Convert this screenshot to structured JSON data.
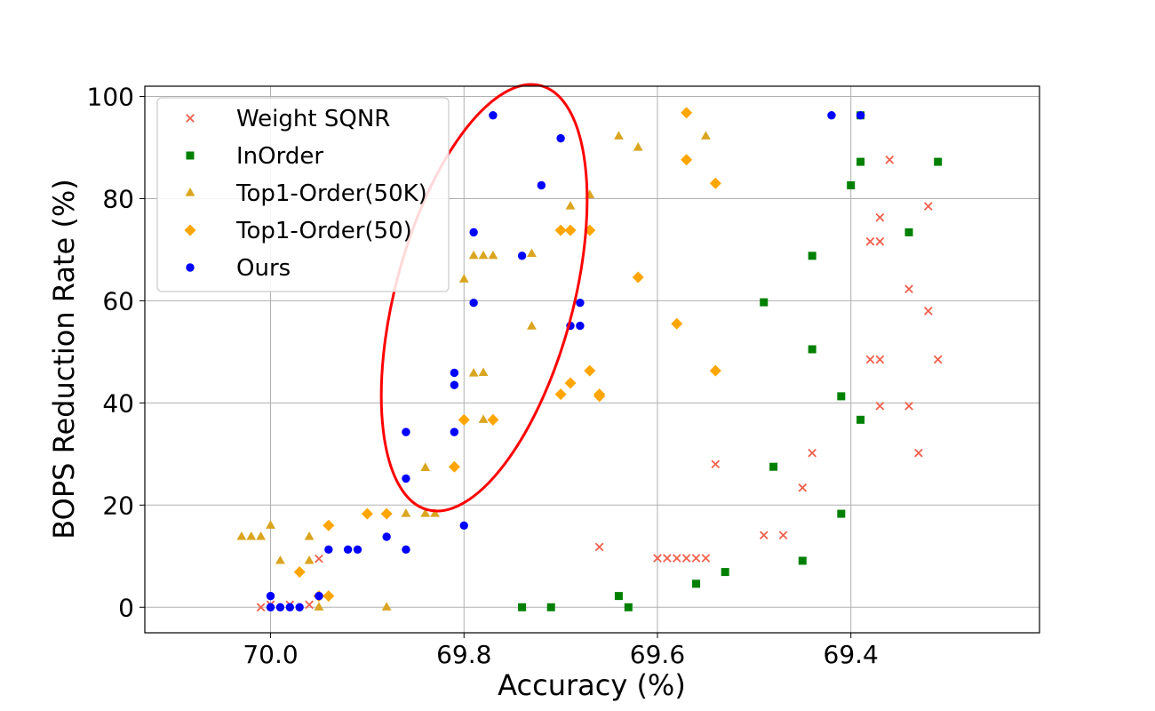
{
  "chart_data": {
    "type": "scatter",
    "title": "",
    "xlabel": "Accuracy (%)",
    "ylabel": "BOPS Reduction Rate (%)",
    "xlim": [
      70.13,
      69.205
    ],
    "ylim": [
      -5,
      102
    ],
    "x_inverted": true,
    "xticks": [
      70.0,
      69.8,
      69.6,
      69.4
    ],
    "xtick_labels": [
      "70.0",
      "69.8",
      "69.6",
      "69.4"
    ],
    "yticks": [
      0,
      20,
      40,
      60,
      80,
      100
    ],
    "ytick_labels": [
      "0",
      "20",
      "40",
      "60",
      "80",
      "100"
    ],
    "grid": true,
    "legend_position": "top-left",
    "series": [
      {
        "name": "Weight SQNR",
        "marker": "x",
        "color": "#f0604c",
        "points": [
          [
            70.01,
            0
          ],
          [
            70.0,
            0.5
          ],
          [
            69.98,
            0.5
          ],
          [
            69.96,
            0.5
          ],
          [
            69.95,
            9.5
          ],
          [
            69.66,
            11.8
          ],
          [
            69.6,
            9.6
          ],
          [
            69.59,
            9.6
          ],
          [
            69.58,
            9.6
          ],
          [
            69.57,
            9.6
          ],
          [
            69.56,
            9.6
          ],
          [
            69.55,
            9.6
          ],
          [
            69.54,
            28
          ],
          [
            69.49,
            14.1
          ],
          [
            69.47,
            14.1
          ],
          [
            69.45,
            23.4
          ],
          [
            69.44,
            30.2
          ],
          [
            69.38,
            48.5
          ],
          [
            69.37,
            48.5
          ],
          [
            69.37,
            39.4
          ],
          [
            69.34,
            39.4
          ],
          [
            69.38,
            71.6
          ],
          [
            69.37,
            71.6
          ],
          [
            69.37,
            76.3
          ],
          [
            69.36,
            87.6
          ],
          [
            69.33,
            30.2
          ],
          [
            69.32,
            58
          ],
          [
            69.31,
            48.5
          ],
          [
            69.32,
            78.5
          ],
          [
            69.34,
            62.3
          ]
        ]
      },
      {
        "name": "InOrder",
        "marker": "square",
        "color": "#008000",
        "points": [
          [
            69.74,
            0
          ],
          [
            69.71,
            0
          ],
          [
            69.64,
            2.2
          ],
          [
            69.63,
            0
          ],
          [
            69.56,
            4.6
          ],
          [
            69.53,
            6.9
          ],
          [
            69.49,
            59.7
          ],
          [
            69.48,
            27.5
          ],
          [
            69.45,
            9.1
          ],
          [
            69.44,
            50.5
          ],
          [
            69.44,
            68.8
          ],
          [
            69.41,
            41.3
          ],
          [
            69.41,
            18.3
          ],
          [
            69.4,
            82.6
          ],
          [
            69.39,
            87.2
          ],
          [
            69.39,
            36.7
          ],
          [
            69.39,
            96.3
          ],
          [
            69.34,
            73.4
          ],
          [
            69.31,
            87.2
          ]
        ]
      },
      {
        "name": "Top1-Order(50K)",
        "marker": "triangle",
        "color": "#daa520",
        "points": [
          [
            70.03,
            13.8
          ],
          [
            70.02,
            13.8
          ],
          [
            70.01,
            13.8
          ],
          [
            70.0,
            16
          ],
          [
            69.99,
            9.1
          ],
          [
            69.96,
            9.1
          ],
          [
            69.96,
            13.8
          ],
          [
            69.95,
            0
          ],
          [
            69.88,
            0
          ],
          [
            69.86,
            18.3
          ],
          [
            69.84,
            18.3
          ],
          [
            69.83,
            18.3
          ],
          [
            69.84,
            27.3
          ],
          [
            69.8,
            64.2
          ],
          [
            69.79,
            68.8
          ],
          [
            69.78,
            68.8
          ],
          [
            69.77,
            68.8
          ],
          [
            69.79,
            45.8
          ],
          [
            69.78,
            45.9
          ],
          [
            69.78,
            36.7
          ],
          [
            69.73,
            55
          ],
          [
            69.73,
            69.2
          ],
          [
            69.69,
            78.5
          ],
          [
            69.67,
            80.7
          ],
          [
            69.64,
            92.2
          ],
          [
            69.62,
            90
          ],
          [
            69.55,
            92.2
          ]
        ]
      },
      {
        "name": "Top1-Order(50)",
        "marker": "diamond",
        "color": "#ffa500",
        "points": [
          [
            69.97,
            6.9
          ],
          [
            69.95,
            2.2
          ],
          [
            69.94,
            2.2
          ],
          [
            69.94,
            16
          ],
          [
            69.9,
            18.3
          ],
          [
            69.88,
            18.3
          ],
          [
            69.81,
            27.5
          ],
          [
            69.8,
            36.7
          ],
          [
            69.77,
            36.7
          ],
          [
            69.7,
            41.7
          ],
          [
            69.69,
            43.9
          ],
          [
            69.67,
            46.3
          ],
          [
            69.66,
            41.3
          ],
          [
            69.66,
            41.7
          ],
          [
            69.7,
            73.8
          ],
          [
            69.69,
            73.8
          ],
          [
            69.67,
            73.8
          ],
          [
            69.62,
            64.6
          ],
          [
            69.58,
            55.5
          ],
          [
            69.57,
            87.6
          ],
          [
            69.57,
            96.8
          ],
          [
            69.54,
            46.3
          ],
          [
            69.54,
            83
          ]
        ]
      },
      {
        "name": "Ours",
        "marker": "circle",
        "color": "#0000ff",
        "points": [
          [
            70.0,
            0
          ],
          [
            70.0,
            2.2
          ],
          [
            69.99,
            0
          ],
          [
            69.98,
            0
          ],
          [
            69.97,
            0
          ],
          [
            69.95,
            2.2
          ],
          [
            69.94,
            11.3
          ],
          [
            69.92,
            11.3
          ],
          [
            69.91,
            11.3
          ],
          [
            69.88,
            13.8
          ],
          [
            69.86,
            11.3
          ],
          [
            69.86,
            25.2
          ],
          [
            69.86,
            34.3
          ],
          [
            69.81,
            34.3
          ],
          [
            69.81,
            43.5
          ],
          [
            69.81,
            45.9
          ],
          [
            69.8,
            16
          ],
          [
            69.79,
            59.6
          ],
          [
            69.79,
            73.4
          ],
          [
            69.77,
            96.3
          ],
          [
            69.74,
            68.8
          ],
          [
            69.72,
            82.6
          ],
          [
            69.7,
            91.8
          ],
          [
            69.69,
            55.1
          ],
          [
            69.68,
            55.1
          ],
          [
            69.68,
            59.6
          ],
          [
            69.42,
            96.3
          ],
          [
            69.39,
            96.3
          ]
        ]
      }
    ],
    "annotations": [
      {
        "type": "ellipse",
        "color": "#ff0000",
        "label": ""
      }
    ]
  }
}
